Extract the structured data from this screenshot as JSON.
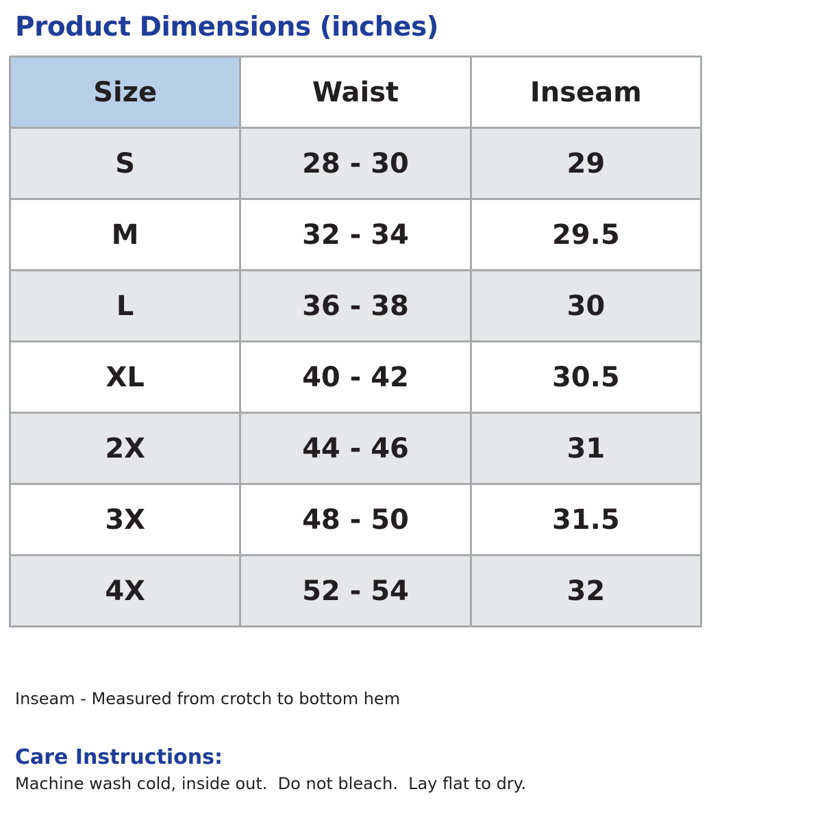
{
  "title": "Product Dimensions (inches)",
  "colors": {
    "title": "#1f3d99",
    "header_highlight": "#b8cfe8",
    "row_shade": "#e6e7e9",
    "grid_border": "#a7a9ac",
    "text": "#231f20"
  },
  "table": {
    "headers": {
      "size": "Size",
      "waist": "Waist",
      "inseam": "Inseam"
    },
    "rows": [
      {
        "size": "S",
        "waist": "28 - 30",
        "inseam": "29"
      },
      {
        "size": "M",
        "waist": "32 - 34",
        "inseam": "29.5"
      },
      {
        "size": "L",
        "waist": "36 - 38",
        "inseam": "30"
      },
      {
        "size": "XL",
        "waist": "40 - 42",
        "inseam": "30.5"
      },
      {
        "size": "2X",
        "waist": "44 - 46",
        "inseam": "31"
      },
      {
        "size": "3X",
        "waist": "48 - 50",
        "inseam": "31.5"
      },
      {
        "size": "4X",
        "waist": "52 - 54",
        "inseam": "32"
      }
    ]
  },
  "note": "Inseam - Measured from crotch to bottom hem",
  "care": {
    "heading": "Care Instructions:",
    "text": "Machine wash cold, inside out.  Do not bleach.  Lay flat to dry."
  }
}
